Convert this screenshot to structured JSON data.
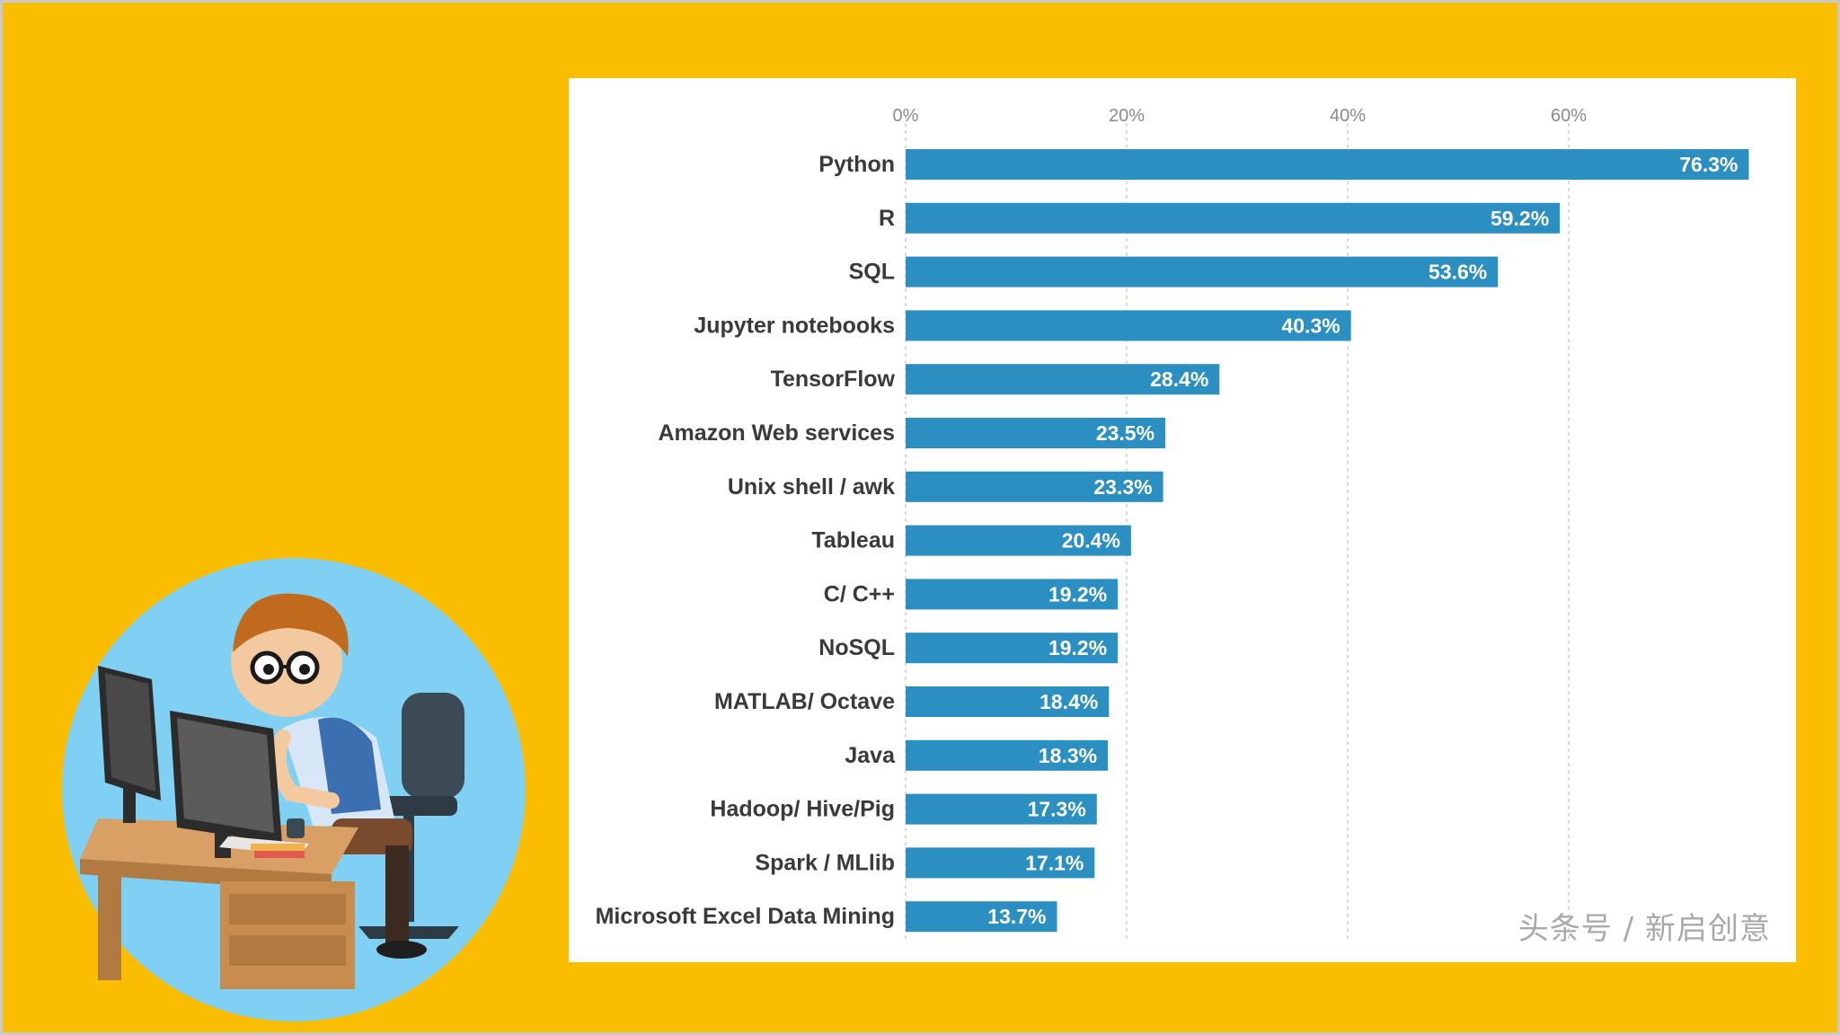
{
  "background_color": "#fbbd00",
  "bar_color": "#2b8fc1",
  "chart_data": {
    "type": "bar",
    "orientation": "horizontal",
    "categories": [
      "Python",
      "R",
      "SQL",
      "Jupyter notebooks",
      "TensorFlow",
      "Amazon Web services",
      "Unix shell / awk",
      "Tableau",
      "C/ C++",
      "NoSQL",
      "MATLAB/ Octave",
      "Java",
      "Hadoop/ Hive/Pig",
      "Spark / MLlib",
      "Microsoft Excel Data Mining"
    ],
    "values": [
      76.3,
      59.2,
      53.6,
      40.3,
      28.4,
      23.5,
      23.3,
      20.4,
      19.2,
      19.2,
      18.4,
      18.3,
      17.3,
      17.1,
      13.7
    ],
    "value_labels": [
      "76.3%",
      "59.2%",
      "53.6%",
      "40.3%",
      "28.4%",
      "23.5%",
      "23.3%",
      "20.4%",
      "19.2%",
      "19.2%",
      "18.4%",
      "18.3%",
      "17.3%",
      "17.1%",
      "13.7%"
    ],
    "x_ticks": [
      0,
      20,
      40,
      60
    ],
    "x_tick_labels": [
      "0%",
      "20%",
      "40%",
      "60%"
    ],
    "xlim": [
      0,
      80
    ],
    "axis_position": "top",
    "grid": true,
    "title": "",
    "xlabel": "",
    "ylabel": ""
  },
  "illustration": {
    "icon": "programmer-at-computer-illustration",
    "circle_color": "#7fd0f2"
  },
  "watermark": "头条号 / 新启创意"
}
